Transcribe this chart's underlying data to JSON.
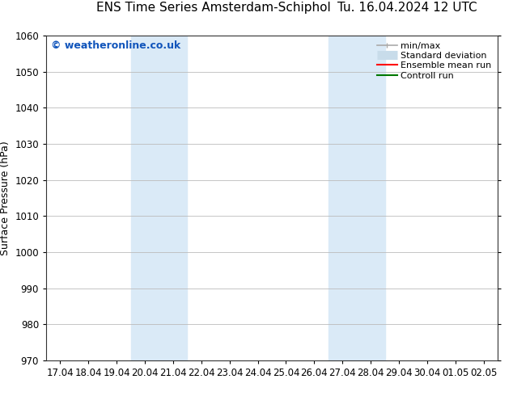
{
  "title_left": "ENS Time Series Amsterdam-Schiphol",
  "title_right": "Tu. 16.04.2024 12 UTC",
  "ylabel": "Surface Pressure (hPa)",
  "ylim": [
    970,
    1060
  ],
  "yticks": [
    970,
    980,
    990,
    1000,
    1010,
    1020,
    1030,
    1040,
    1050,
    1060
  ],
  "xlabels": [
    "17.04",
    "18.04",
    "19.04",
    "20.04",
    "21.04",
    "22.04",
    "23.04",
    "24.04",
    "25.04",
    "26.04",
    "27.04",
    "28.04",
    "29.04",
    "30.04",
    "01.05",
    "02.05"
  ],
  "shaded_regions": [
    {
      "xstart": 3,
      "xend": 5
    },
    {
      "xstart": 10,
      "xend": 12
    }
  ],
  "shade_color": "#daeaf7",
  "bg_color": "#ffffff",
  "watermark": "© weatheronline.co.uk",
  "watermark_color": "#1155bb",
  "legend_items": [
    {
      "label": "min/max",
      "color": "#aaaaaa",
      "lw": 1.2,
      "style": "line_with_caps"
    },
    {
      "label": "Standard deviation",
      "color": "#c8dcea",
      "lw": 8,
      "style": "thick"
    },
    {
      "label": "Ensemble mean run",
      "color": "#ff0000",
      "lw": 1.5,
      "style": "line"
    },
    {
      "label": "Controll run",
      "color": "#007700",
      "lw": 1.5,
      "style": "line"
    }
  ],
  "grid_color": "#bbbbbb",
  "spine_color": "#333333",
  "tick_label_fontsize": 8.5,
  "title_fontsize": 11,
  "ylabel_fontsize": 9,
  "watermark_fontsize": 9,
  "legend_fontsize": 8
}
